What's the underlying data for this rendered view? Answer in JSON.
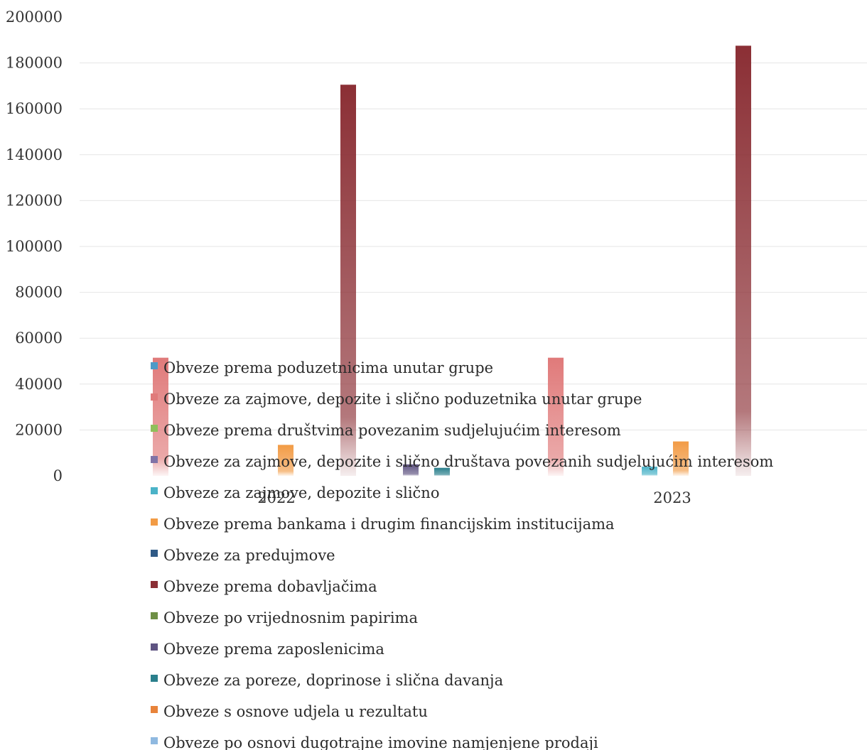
{
  "chart_data": {
    "type": "bar",
    "categories": [
      "2022",
      "2023"
    ],
    "ylim": [
      0,
      200000
    ],
    "yticks": [
      0,
      20000,
      40000,
      60000,
      80000,
      100000,
      120000,
      140000,
      160000,
      180000,
      200000
    ],
    "grid": true,
    "legend_position": "bottom",
    "series": [
      {
        "name": "Obveze prema poduzetnicima unutar grupe",
        "color": "#4e9ac7",
        "values": [
          0,
          0
        ]
      },
      {
        "name": "Obveze za zajmove, depozite i slično poduzetnika unutar grupe",
        "color": "#e07a7a",
        "values": [
          51500,
          51500
        ]
      },
      {
        "name": "Obveze prema društvima povezanim sudjelujućim interesom",
        "color": "#8fbf5a",
        "values": [
          0,
          0
        ]
      },
      {
        "name": "Obveze za zajmove, depozite i slično društava povezanih sudjelujućim interesom",
        "color": "#8073a6",
        "values": [
          0,
          0
        ]
      },
      {
        "name": "Obveze za zajmove, depozite i slično",
        "color": "#4bb3c8",
        "values": [
          0,
          4000
        ]
      },
      {
        "name": "Obveze prema bankama i drugim financijskim institucijama",
        "color": "#f29b45",
        "values": [
          13500,
          15000
        ]
      },
      {
        "name": "Obveze za predujmove",
        "color": "#2f5a86",
        "values": [
          0,
          0
        ]
      },
      {
        "name": "Obveze prema dobavljačima",
        "color": "#8b2f35",
        "values": [
          170500,
          187500
        ]
      },
      {
        "name": "Obveze po vrijednosnim papirima",
        "color": "#6e8f45",
        "values": [
          0,
          0
        ]
      },
      {
        "name": "Obveze prema zaposlenicima",
        "color": "#5f5482",
        "values": [
          5000,
          0
        ]
      },
      {
        "name": "Obveze za poreze, doprinose i slična davanja",
        "color": "#2a7f8c",
        "values": [
          3500,
          0
        ]
      },
      {
        "name": "Obveze s osnove udjela u rezultatu",
        "color": "#e8833a",
        "values": [
          0,
          0
        ]
      },
      {
        "name": "Obveze po osnovi dugotrajne imovine namjenjene prodaji",
        "color": "#8fb9e0",
        "values": [
          0,
          0
        ]
      }
    ]
  }
}
